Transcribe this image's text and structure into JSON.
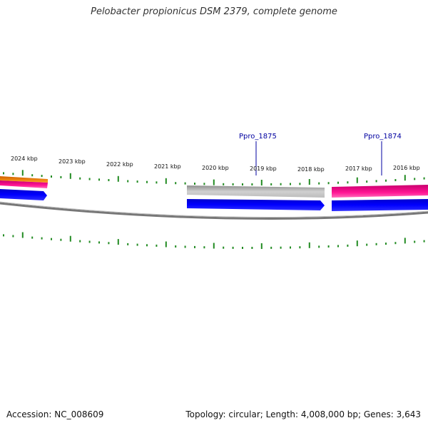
{
  "title": "Pelobacter propionicus DSM 2379, complete genome",
  "footer": {
    "accession": "Accession: NC_008609",
    "summary": "Topology: circular; Length: 4,008,000 bp; Genes: 3,643"
  },
  "colors": {
    "backbone": "#808080",
    "gene_blue": "#0000ff",
    "gene_grey": "#b8b8b8",
    "gene_pink": "#ff1493",
    "gene_orange": "#ff8c00",
    "tick_green": "#228b22",
    "label_blue": "#0000a0"
  },
  "scale": {
    "ticks": [
      "2024 kbp",
      "2023 kbp",
      "2022 kbp",
      "2021 kbp",
      "2020 kbp",
      "2019 kbp",
      "2018 kbp",
      "2017 kbp",
      "2016 kbp"
    ]
  },
  "gene_labels": [
    "Ppro_1875",
    "Ppro_1874"
  ]
}
